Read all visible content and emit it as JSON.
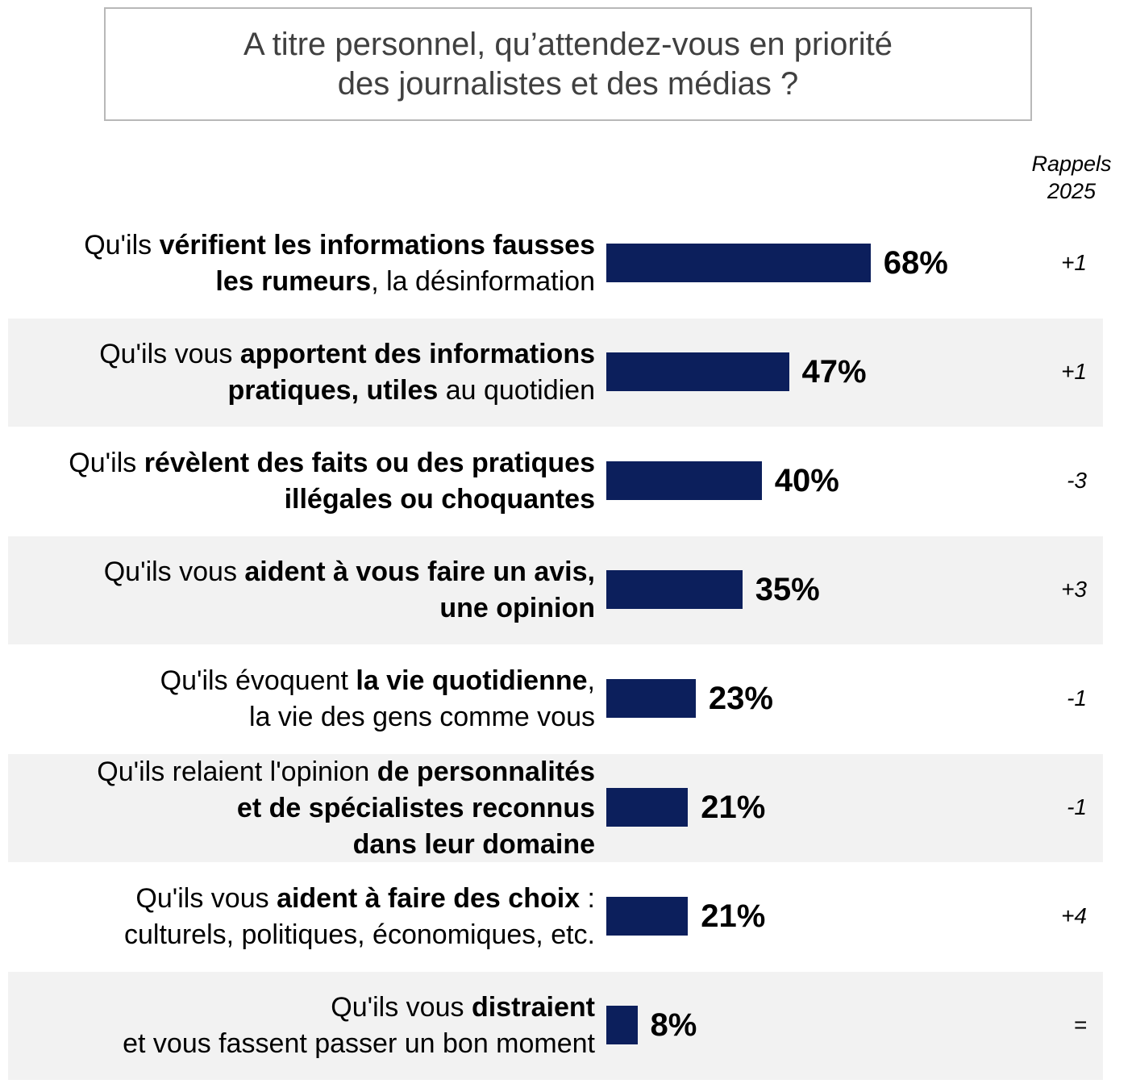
{
  "chart_data": {
    "type": "bar",
    "orientation": "horizontal",
    "title": "A titre personnel, qu’attendez-vous en priorité des journalistes et des médias ?",
    "title_lines": [
      "A titre personnel, qu’attendez-vous en priorité",
      "des journalistes et des médias ?"
    ],
    "compare_header": [
      "Rappels",
      "2025"
    ],
    "value_suffix": "%",
    "xlim": [
      0,
      100
    ],
    "bar_color": "#0c1f5c",
    "row_shade_color": "#f2f2f2",
    "categories": [
      {
        "lines": [
          [
            {
              "text": "Qu'ils ",
              "bold": false
            },
            {
              "text": "vérifient les informations fausses",
              "bold": true
            }
          ],
          [
            {
              "text": "les rumeurs",
              "bold": true
            },
            {
              "text": ", la désinformation",
              "bold": false
            }
          ]
        ],
        "value": 68,
        "change": "+1"
      },
      {
        "lines": [
          [
            {
              "text": "Qu'ils vous ",
              "bold": false
            },
            {
              "text": "apportent des informations",
              "bold": true
            }
          ],
          [
            {
              "text": "pratiques, utiles",
              "bold": true
            },
            {
              "text": " au quotidien",
              "bold": false
            }
          ]
        ],
        "value": 47,
        "change": "+1"
      },
      {
        "lines": [
          [
            {
              "text": "Qu'ils ",
              "bold": false
            },
            {
              "text": "révèlent des faits ou des pratiques",
              "bold": true
            }
          ],
          [
            {
              "text": "illégales ou choquantes",
              "bold": true
            }
          ]
        ],
        "value": 40,
        "change": "-3"
      },
      {
        "lines": [
          [
            {
              "text": "Qu'ils vous ",
              "bold": false
            },
            {
              "text": "aident à vous faire un avis,",
              "bold": true
            }
          ],
          [
            {
              "text": "une opinion",
              "bold": true
            }
          ]
        ],
        "value": 35,
        "change": "+3"
      },
      {
        "lines": [
          [
            {
              "text": "Qu'ils évoquent ",
              "bold": false
            },
            {
              "text": "la vie quotidienne",
              "bold": true
            },
            {
              "text": ",",
              "bold": false
            }
          ],
          [
            {
              "text": "la vie des gens comme vous",
              "bold": false
            }
          ]
        ],
        "value": 23,
        "change": "-1"
      },
      {
        "lines": [
          [
            {
              "text": "Qu'ils relaient l'opinion ",
              "bold": false
            },
            {
              "text": "de personnalités",
              "bold": true
            }
          ],
          [
            {
              "text": "et de spécialistes reconnus",
              "bold": true
            }
          ],
          [
            {
              "text": "dans leur domaine",
              "bold": true
            }
          ]
        ],
        "value": 21,
        "change": "-1"
      },
      {
        "lines": [
          [
            {
              "text": "Qu'ils vous ",
              "bold": false
            },
            {
              "text": "aident à faire des choix",
              "bold": true
            },
            {
              "text": " :",
              "bold": false
            }
          ],
          [
            {
              "text": "culturels, politiques, économiques, etc.",
              "bold": false
            }
          ]
        ],
        "value": 21,
        "change": "+4"
      },
      {
        "lines": [
          [
            {
              "text": "Qu'ils vous ",
              "bold": false
            },
            {
              "text": "distraient",
              "bold": true
            }
          ],
          [
            {
              "text": "et vous fassent passer un bon moment",
              "bold": false
            }
          ]
        ],
        "value": 8,
        "change": "="
      }
    ]
  }
}
